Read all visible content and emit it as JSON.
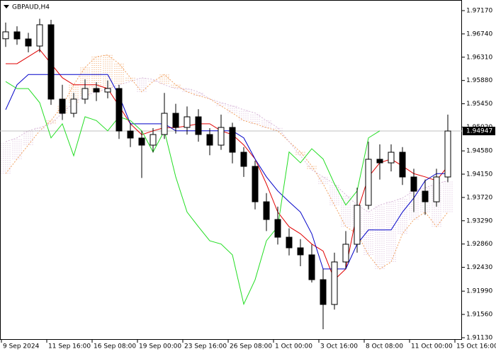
{
  "chart_data": {
    "type": "candlestick",
    "title": "GBPAUD,H4",
    "ylim": [
      1.9113,
      1.9717
    ],
    "yticks": [
      {
        "value": 1.9717,
        "label": "1.97170"
      },
      {
        "value": 1.9674,
        "label": "1.96740"
      },
      {
        "value": 1.9631,
        "label": "1.96310"
      },
      {
        "value": 1.9588,
        "label": "1.95880"
      },
      {
        "value": 1.9545,
        "label": "1.95450"
      },
      {
        "value": 1.9502,
        "label": "1.95020"
      },
      {
        "value": 1.9458,
        "label": "1.94580"
      },
      {
        "value": 1.9415,
        "label": "1.94150"
      },
      {
        "value": 1.9372,
        "label": "1.93720"
      },
      {
        "value": 1.9329,
        "label": "1.93290"
      },
      {
        "value": 1.9286,
        "label": "1.92860"
      },
      {
        "value": 1.9243,
        "label": "1.92430"
      },
      {
        "value": 1.9199,
        "label": "1.91990"
      },
      {
        "value": 1.9156,
        "label": "1.91560"
      },
      {
        "value": 1.9113,
        "label": "1.91130"
      }
    ],
    "current_price": {
      "value": 1.94947,
      "label": "1.94947"
    },
    "x_labels": [
      "9 Sep 2024",
      "11 Sep 16:00",
      "16 Sep 08:00",
      "19 Sep 00:00",
      "23 Sep 16:00",
      "26 Sep 08:00",
      "1 Oct 00:00",
      "3 Oct 16:00",
      "8 Oct 08:00",
      "11 Oct 00:00",
      "15 Oct 16:00"
    ],
    "open": [
      1.9665,
      1.96778,
      1.96647,
      1.96516,
      1.96909,
      1.95536,
      1.95274,
      1.95536,
      1.95732,
      1.95667,
      1.95732,
      1.94947,
      1.94817,
      1.94686,
      1.94882,
      1.95274,
      1.95013,
      1.95209,
      1.94882,
      1.94686,
      1.95013,
      1.94555,
      1.94294,
      1.9364,
      1.93313,
      1.92986,
      1.9279,
      1.9266,
      1.92202,
      1.91744,
      1.92529,
      1.92856,
      1.93575,
      1.94425,
      1.94359,
      1.94555,
      1.94098,
      1.93836,
      1.9364,
      1.94098
    ],
    "high": [
      1.9695,
      1.9688,
      1.9676,
      1.9702,
      1.97,
      1.958,
      1.9565,
      1.959,
      1.9585,
      1.9588,
      1.958,
      1.951,
      1.9495,
      1.95,
      1.9565,
      1.9545,
      1.954,
      1.9535,
      1.95,
      1.9525,
      1.951,
      1.9465,
      1.944,
      1.938,
      1.9355,
      1.9315,
      1.9295,
      1.9285,
      1.924,
      1.927,
      1.931,
      1.939,
      1.9475,
      1.947,
      1.947,
      1.9465,
      1.9425,
      1.9405,
      1.9425,
      1.9525
    ],
    "low": [
      1.965,
      1.9654,
      1.964,
      1.964,
      1.9543,
      1.9515,
      1.952,
      1.9545,
      1.955,
      1.9555,
      1.948,
      1.9465,
      1.9408,
      1.9455,
      1.948,
      1.949,
      1.9488,
      1.9475,
      1.945,
      1.946,
      1.9435,
      1.941,
      1.935,
      1.931,
      1.9285,
      1.9265,
      1.9245,
      1.9215,
      1.91287,
      1.9165,
      1.924,
      1.927,
      1.935,
      1.9405,
      1.942,
      1.9395,
      1.9345,
      1.934,
      1.9355,
      1.94
    ],
    "close": [
      1.96778,
      1.96647,
      1.96516,
      1.96909,
      1.95536,
      1.95274,
      1.95536,
      1.95732,
      1.95667,
      1.95732,
      1.94947,
      1.94817,
      1.94686,
      1.94882,
      1.95274,
      1.95013,
      1.95209,
      1.94882,
      1.94686,
      1.95013,
      1.94555,
      1.94294,
      1.9364,
      1.93313,
      1.92986,
      1.9279,
      1.9266,
      1.92202,
      1.91744,
      1.92529,
      1.92856,
      1.93575,
      1.94425,
      1.94359,
      1.94555,
      1.94098,
      1.93836,
      1.9364,
      1.94098,
      1.94947
    ],
    "lines": [
      {
        "color": "#e00000",
        "values": [
          1.9619,
          1.9619,
          1.9632,
          1.9645,
          1.9619,
          1.9593,
          1.958,
          1.958,
          1.958,
          1.9573,
          1.9541,
          1.9508,
          1.9488,
          1.9495,
          1.9501,
          1.9501,
          1.9504,
          1.9508,
          1.9508,
          1.9495,
          1.9488,
          1.9469,
          1.9443,
          1.9397,
          1.9345,
          1.9318,
          1.9305,
          1.9286,
          1.9273,
          1.922,
          1.924,
          1.9345,
          1.941,
          1.9436,
          1.9443,
          1.943,
          1.9416,
          1.941,
          1.9403,
          1.943
        ]
      },
      {
        "color": "#0000c8",
        "values": [
          1.9534,
          1.958,
          1.9599,
          1.9599,
          1.9599,
          1.9599,
          1.9599,
          1.9599,
          1.9599,
          1.9599,
          1.956,
          1.9508,
          1.9508,
          1.9508,
          1.9508,
          1.9495,
          1.9495,
          1.9495,
          1.9495,
          1.9495,
          1.9495,
          1.9482,
          1.9443,
          1.941,
          1.9384,
          1.9364,
          1.9345,
          1.9305,
          1.924,
          1.924,
          1.924,
          1.9286,
          1.9312,
          1.9312,
          1.9312,
          1.9345,
          1.9371,
          1.9403,
          1.9416,
          1.9416
        ]
      },
      {
        "color": "#22dd22",
        "values": [
          1.9586,
          1.9573,
          1.9573,
          1.9547,
          1.9482,
          1.9508,
          1.9449,
          1.9521,
          1.9514,
          1.9495,
          1.9521,
          1.9514,
          1.9495,
          1.9456,
          1.9495,
          1.941,
          1.9345,
          1.9318,
          1.9292,
          1.9286,
          1.9266,
          1.9175,
          1.922,
          1.9292,
          1.9318,
          1.9456,
          1.9436,
          1.9462,
          1.9443,
          1.9397,
          1.9358,
          1.9384,
          1.9482,
          1.9495,
          null,
          null,
          null,
          null,
          null,
          null
        ]
      }
    ],
    "cloud": {
      "color_a": "#f0a060",
      "color_b": "#d8b8d8",
      "span_a": [
        1.9416,
        1.9443,
        1.9469,
        1.9495,
        1.9514,
        1.9541,
        1.958,
        1.9612,
        1.9632,
        1.9635,
        1.9619,
        1.9593,
        1.9567,
        1.9586,
        1.9599,
        1.958,
        1.9567,
        1.956,
        1.9554,
        1.9541,
        1.9528,
        1.9514,
        1.9508,
        1.9501,
        1.9495,
        1.9475,
        1.9456,
        1.943,
        1.9397,
        1.9358,
        1.9318,
        1.9305,
        1.9266,
        1.924,
        1.9253,
        1.9305,
        1.9331,
        1.9345,
        1.9318,
        1.9345
      ],
      "span_b": [
        1.9475,
        1.9482,
        1.9495,
        1.9501,
        1.9508,
        1.9528,
        1.9547,
        1.956,
        1.9567,
        1.9573,
        1.958,
        1.9586,
        1.9593,
        1.959,
        1.958,
        1.9573,
        1.9573,
        1.9567,
        1.9554,
        1.9547,
        1.9541,
        1.9534,
        1.9528,
        1.9514,
        1.9501,
        1.9475,
        1.9449,
        1.9423,
        1.941,
        1.9397,
        1.9377,
        1.9358,
        1.9345,
        1.9358,
        1.9364,
        1.9371,
        1.9384,
        1.939,
        1.9397,
        1.9403
      ]
    }
  }
}
